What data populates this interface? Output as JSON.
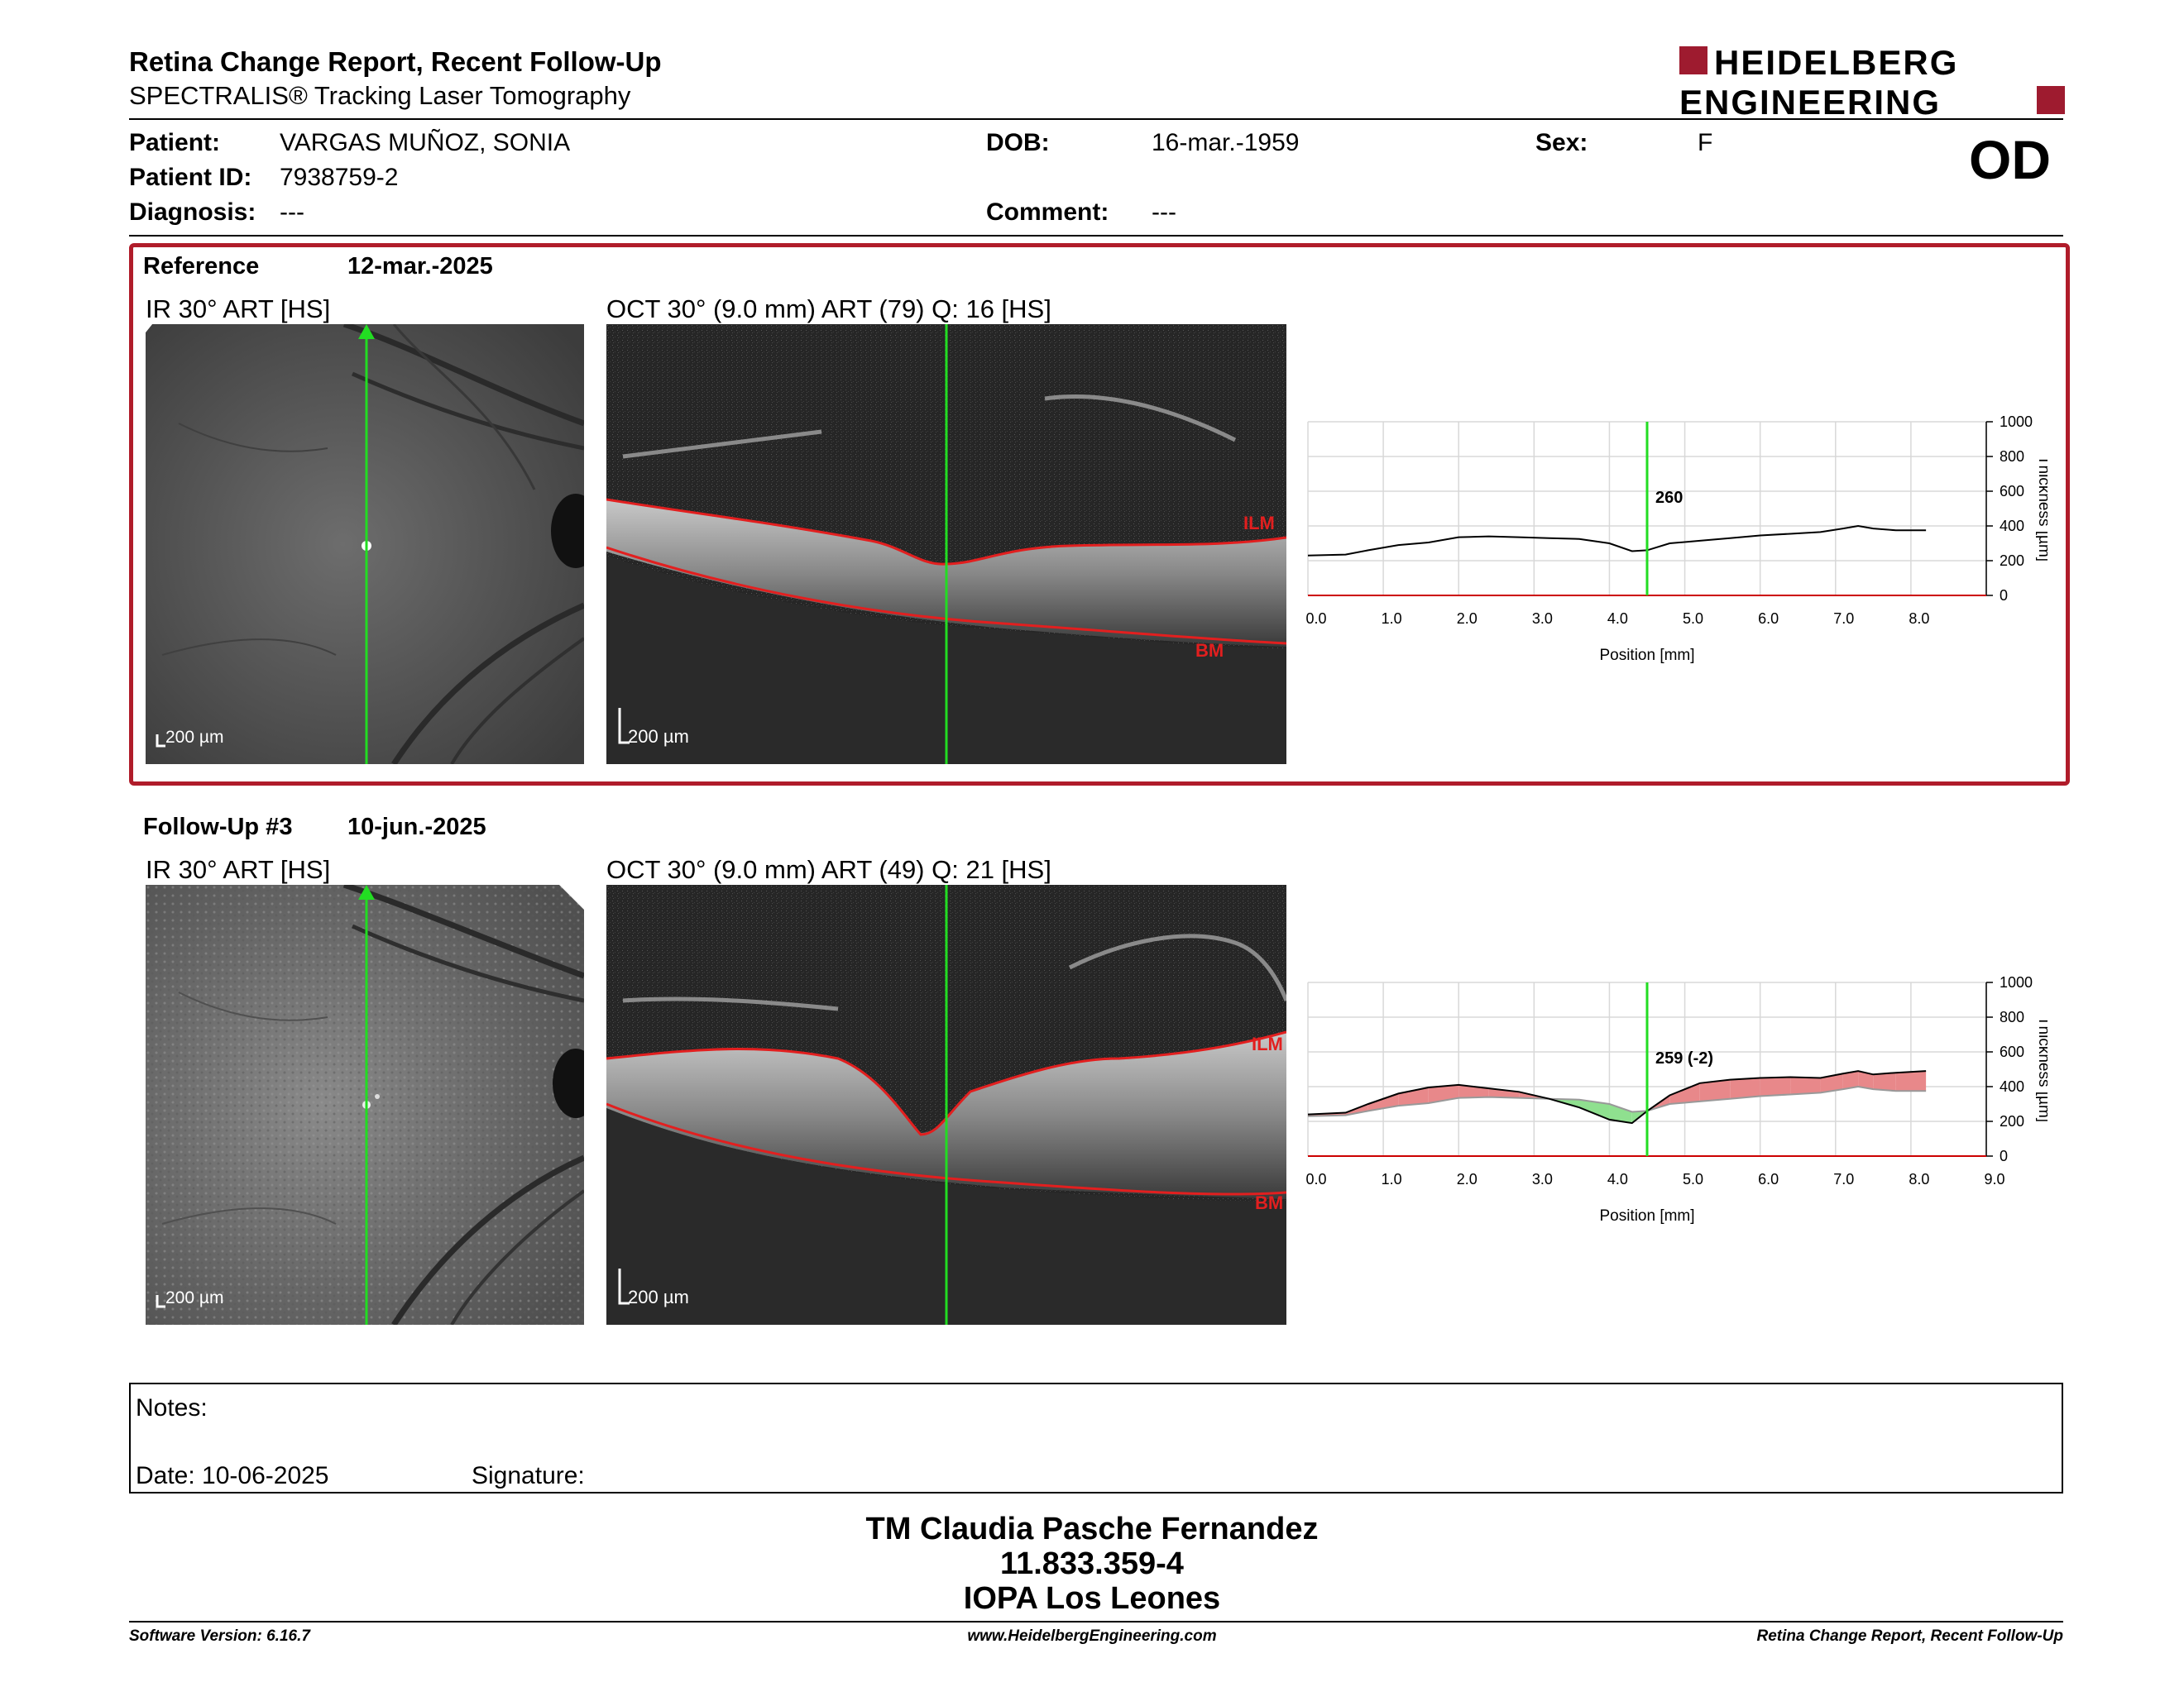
{
  "header": {
    "title": "Retina Change Report, Recent Follow-Up",
    "subtitle": "SPECTRALIS® Tracking Laser Tomography",
    "logo_line1": "HEIDELBERG",
    "logo_line2": "ENGINEERING",
    "eye": "OD",
    "brand_color": "#9e1b2f"
  },
  "patient": {
    "name_label": "Patient:",
    "name": "VARGAS MUÑOZ, SONIA",
    "id_label": "Patient ID:",
    "id": "7938759-2",
    "diagnosis_label": "Diagnosis:",
    "diagnosis": "---",
    "dob_label": "DOB:",
    "dob": "16-mar.-1959",
    "comment_label": "Comment:",
    "comment": "---",
    "sex_label": "Sex:",
    "sex": "F"
  },
  "reference": {
    "label": "Reference",
    "date": "12-mar.-2025",
    "ir_label": "IR 30° ART [HS]",
    "oct_label": "OCT 30° (9.0 mm) ART (79) Q: 16 [HS]",
    "scale_ir": "200 µm",
    "scale_oct": "200 µm",
    "ilm": "ILM",
    "bm": "BM",
    "marker_value": "260"
  },
  "followup": {
    "label": "Follow-Up #3",
    "date": "10-jun.-2025",
    "ir_label": "IR 30° ART [HS]",
    "oct_label": "OCT 30° (9.0 mm) ART (49) Q: 21 [HS]",
    "scale_ir": "200 µm",
    "scale_oct": "200 µm",
    "ilm": "ILM",
    "bm": "BM",
    "marker_value": "259 (-2)"
  },
  "chart_data": [
    {
      "type": "line",
      "xlabel": "Position [mm]",
      "ylabel": "Thickness [µm]",
      "xlim": [
        0,
        9
      ],
      "ylim": [
        0,
        1000
      ],
      "x_ticks": [
        "0.0",
        "1.0",
        "2.0",
        "3.0",
        "4.0",
        "5.0",
        "6.0",
        "7.0",
        "8.0"
      ],
      "y_ticks": [
        "0",
        "200",
        "400",
        "600",
        "800",
        "1000"
      ],
      "marker_x": 4.5,
      "marker_label": "260",
      "series": [
        {
          "x": [
            0,
            0.5,
            0.8,
            1.2,
            1.6,
            2.0,
            2.4,
            2.8,
            3.2,
            3.6,
            4.0,
            4.3,
            4.5,
            4.8,
            5.2,
            5.6,
            6.0,
            6.4,
            6.8,
            7.1,
            7.3,
            7.5,
            7.8,
            8.2
          ],
          "y": [
            230,
            235,
            260,
            290,
            305,
            335,
            340,
            335,
            330,
            325,
            300,
            255,
            260,
            300,
            315,
            330,
            345,
            355,
            365,
            385,
            400,
            385,
            375,
            375
          ]
        }
      ]
    },
    {
      "type": "area",
      "xlabel": "Position [mm]",
      "ylabel": "Thickness [µm]",
      "xlim": [
        0,
        9
      ],
      "ylim": [
        0,
        1000
      ],
      "x_ticks": [
        "0.0",
        "1.0",
        "2.0",
        "3.0",
        "4.0",
        "5.0",
        "6.0",
        "7.0",
        "8.0",
        "9.0"
      ],
      "y_ticks": [
        "0",
        "200",
        "400",
        "600",
        "800",
        "1000"
      ],
      "marker_x": 4.5,
      "marker_label": "259 (-2)",
      "increase_color": "#e8888a",
      "decrease_color": "#8fe08f",
      "series": [
        {
          "x": [
            0,
            0.5,
            0.8,
            1.2,
            1.6,
            2.0,
            2.4,
            2.8,
            3.2,
            3.6,
            4.0,
            4.3,
            4.5,
            4.8,
            5.2,
            5.6,
            6.0,
            6.4,
            6.8,
            7.1,
            7.3,
            7.5,
            7.8,
            8.2
          ],
          "y": [
            240,
            250,
            300,
            360,
            395,
            410,
            390,
            370,
            330,
            280,
            210,
            190,
            259,
            350,
            420,
            440,
            450,
            455,
            450,
            475,
            490,
            470,
            480,
            490
          ]
        },
        {
          "x": [
            0,
            0.5,
            0.8,
            1.2,
            1.6,
            2.0,
            2.4,
            2.8,
            3.2,
            3.6,
            4.0,
            4.3,
            4.5,
            4.8,
            5.2,
            5.6,
            6.0,
            6.4,
            6.8,
            7.1,
            7.3,
            7.5,
            7.8,
            8.2
          ],
          "y": [
            230,
            235,
            260,
            290,
            305,
            335,
            340,
            335,
            330,
            325,
            300,
            255,
            260,
            300,
            315,
            330,
            345,
            355,
            365,
            385,
            400,
            385,
            375,
            375
          ]
        }
      ]
    }
  ],
  "notes": {
    "notes_label": "Notes:",
    "date_label": "Date: 10-06-2025",
    "signature_label": "Signature:"
  },
  "signature_block": {
    "name": "TM Claudia Pasche Fernandez",
    "rut": "11.833.359-4",
    "clinic": "IOPA Los Leones"
  },
  "footer": {
    "software": "Software Version: 6.16.7",
    "website": "www.HeidelbergEngineering.com",
    "report": "Retina Change Report, Recent Follow-Up"
  }
}
